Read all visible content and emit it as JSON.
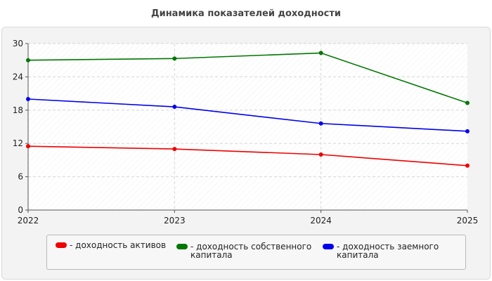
{
  "chart_data": {
    "type": "line",
    "title": "Динамика показателей доходности",
    "xlabel": "",
    "ylabel": "",
    "categories": [
      "2022",
      "2023",
      "2024",
      "2025"
    ],
    "ylim": [
      0,
      30
    ],
    "yticks": [
      "0",
      "6",
      "12",
      "18",
      "24",
      "30"
    ],
    "grid": true,
    "legend_position": "bottom",
    "series": [
      {
        "name": "- доходность активов",
        "color": "#ee0000",
        "values": [
          11.5,
          11.0,
          10.0,
          8.0
        ]
      },
      {
        "name": "- доходность собственного\nкапитала",
        "color": "#007700",
        "values": [
          27.0,
          27.3,
          28.3,
          19.3
        ]
      },
      {
        "name": "- доходность заемного\nкапитала",
        "color": "#0000ee",
        "values": [
          20.0,
          18.6,
          15.6,
          14.2
        ]
      }
    ]
  }
}
